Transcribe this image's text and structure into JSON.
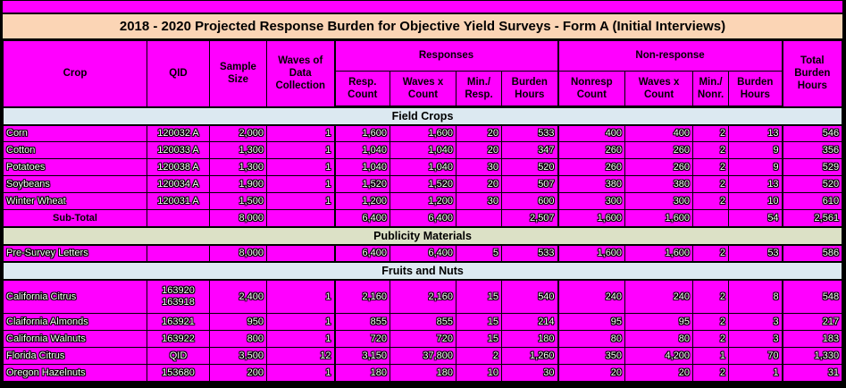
{
  "title": "2018 - 2020 Projected Response Burden for Objective Yield Surveys - Form A (Initial Interviews)",
  "colors": {
    "table_background": "#FF00FF",
    "title_bar_background": "#FBD5B5",
    "band_blue": "#DCE9F1",
    "band_olive": "#DCE1C6",
    "border": "#000000",
    "header_text": "#000000",
    "data_text": "#FFFFFF"
  },
  "header": {
    "crop": "Crop",
    "qid": "QID",
    "sample_size": "Sample\nSize",
    "waves": "Waves of\nData\nCollection",
    "responses_group": "Responses",
    "nonresponse_group": "Non-response",
    "resp_count": "Resp.\nCount",
    "resp_waves_x_count": "Waves x\nCount",
    "min_resp": "Min./\nResp.",
    "resp_burden_hours": "Burden\nHours",
    "nonresp_count": "Nonresp\nCount",
    "nonresp_waves_x_count": "Waves x\nCount",
    "min_nonr": "Min./\nNonr.",
    "nonresp_burden_hours": "Burden\nHours",
    "total_burden_hours": "Total\nBurden\nHours"
  },
  "sections": [
    {
      "label": "Field Crops",
      "band": "blue",
      "rows": [
        {
          "type": "data",
          "cells": [
            "Corn",
            "120032 A",
            "2,000",
            "1",
            "1,600",
            "1,600",
            "20",
            "533",
            "400",
            "400",
            "2",
            "13",
            "546"
          ]
        },
        {
          "type": "data",
          "cells": [
            "Cotton",
            "120033 A",
            "1,300",
            "1",
            "1,040",
            "1,040",
            "20",
            "347",
            "260",
            "260",
            "2",
            "9",
            "356"
          ]
        },
        {
          "type": "data",
          "cells": [
            "Potatoes",
            "120038 A",
            "1,300",
            "1",
            "1,040",
            "1,040",
            "30",
            "520",
            "260",
            "260",
            "2",
            "9",
            "529"
          ]
        },
        {
          "type": "data",
          "cells": [
            "Soybeans",
            "120034 A",
            "1,900",
            "1",
            "1,520",
            "1,520",
            "20",
            "507",
            "380",
            "380",
            "2",
            "13",
            "520"
          ]
        },
        {
          "type": "data",
          "cells": [
            "Winter Wheat",
            "120031 A",
            "1,500",
            "1",
            "1,200",
            "1,200",
            "30",
            "600",
            "300",
            "300",
            "2",
            "10",
            "610"
          ]
        },
        {
          "type": "subtotal",
          "cells": [
            "Sub-Total",
            "",
            "8,000",
            "",
            "6,400",
            "6,400",
            "",
            "2,507",
            "1,600",
            "1,600",
            "",
            "54",
            "2,561"
          ]
        }
      ]
    },
    {
      "label": "Publicity Materials",
      "band": "olive",
      "rows": [
        {
          "type": "data",
          "cells": [
            "Pre-Survey Letters",
            "",
            "8,000",
            "",
            "6,400",
            "6,400",
            "5",
            "533",
            "1,600",
            "1,600",
            "2",
            "53",
            "586"
          ]
        }
      ]
    },
    {
      "label": "Fruits and Nuts",
      "band": "blue",
      "rows": [
        {
          "type": "data",
          "tall": true,
          "cells": [
            "California Citrus",
            "163920\n163918",
            "2,400",
            "1",
            "2,160",
            "2,160",
            "15",
            "540",
            "240",
            "240",
            "2",
            "8",
            "548"
          ]
        },
        {
          "type": "data",
          "cells": [
            "Claifornia Almonds",
            "163921",
            "950",
            "1",
            "855",
            "855",
            "15",
            "214",
            "95",
            "95",
            "2",
            "3",
            "217"
          ]
        },
        {
          "type": "data",
          "cells": [
            "California Walnuts",
            "163922",
            "800",
            "1",
            "720",
            "720",
            "15",
            "180",
            "80",
            "80",
            "2",
            "3",
            "183"
          ]
        },
        {
          "type": "data",
          "cells": [
            "Florida Citrus",
            "QID",
            "3,500",
            "12",
            "3,150",
            "37,800",
            "2",
            "1,260",
            "350",
            "4,200",
            "1",
            "70",
            "1,330"
          ]
        },
        {
          "type": "data",
          "cells": [
            "Oregon Hazelnuts",
            "153680",
            "200",
            "1",
            "180",
            "180",
            "10",
            "30",
            "20",
            "20",
            "2",
            "1",
            "31"
          ]
        }
      ]
    }
  ]
}
